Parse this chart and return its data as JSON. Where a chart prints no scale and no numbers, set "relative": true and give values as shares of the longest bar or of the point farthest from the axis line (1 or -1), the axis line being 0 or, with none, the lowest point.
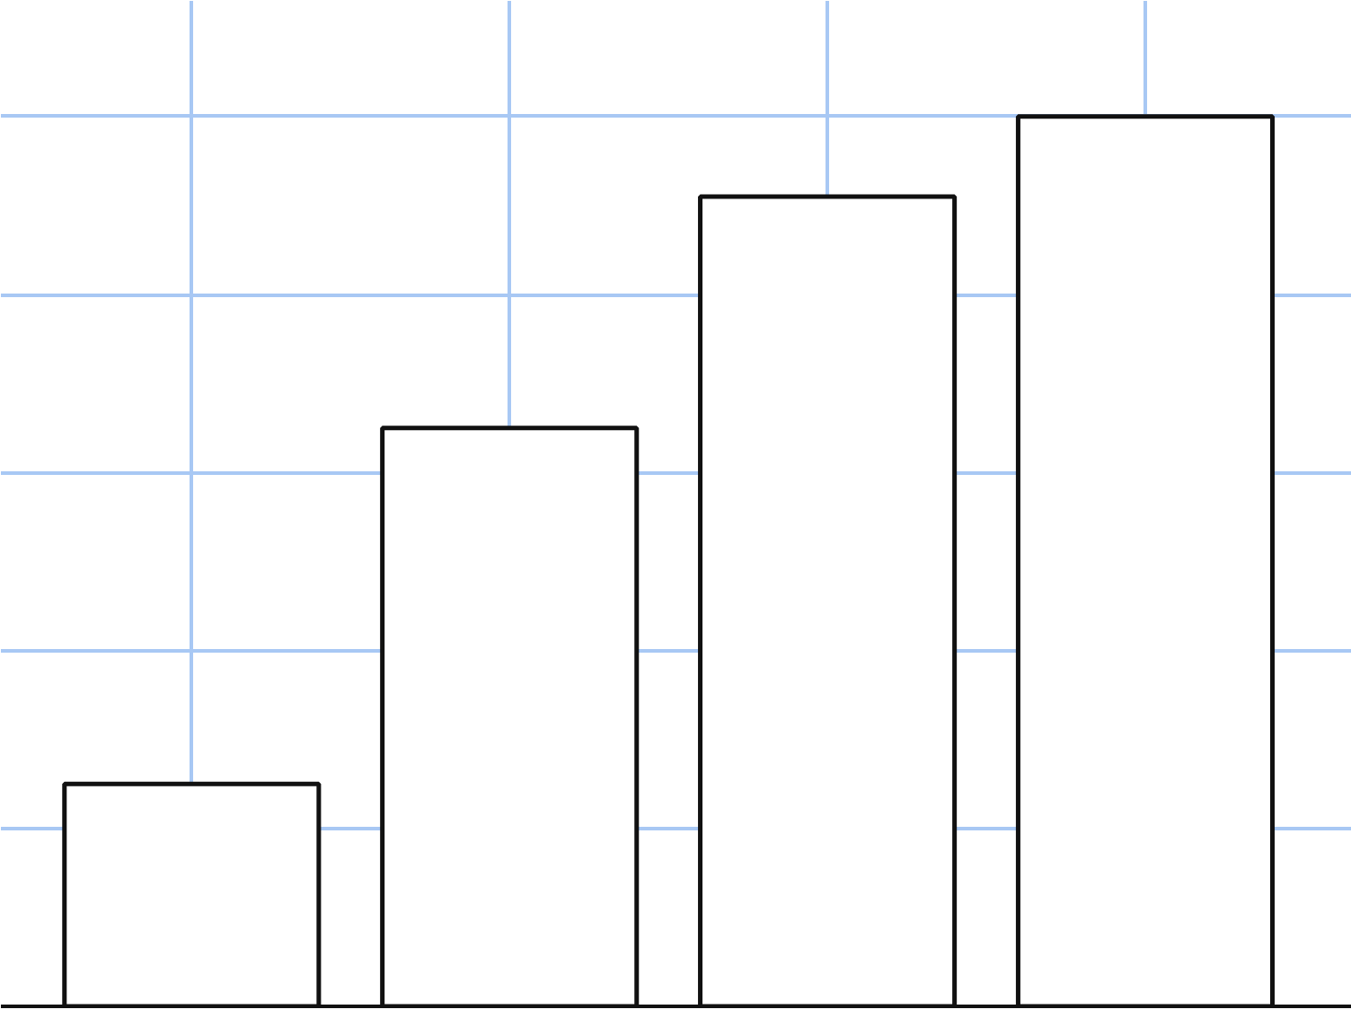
{
  "chart_data": {
    "type": "bar",
    "relative": true,
    "grid": true,
    "categories": [
      null,
      null,
      null,
      null
    ],
    "values": [
      0.25,
      0.65,
      0.91,
      1.0
    ],
    "color": "#ffffff"
  }
}
